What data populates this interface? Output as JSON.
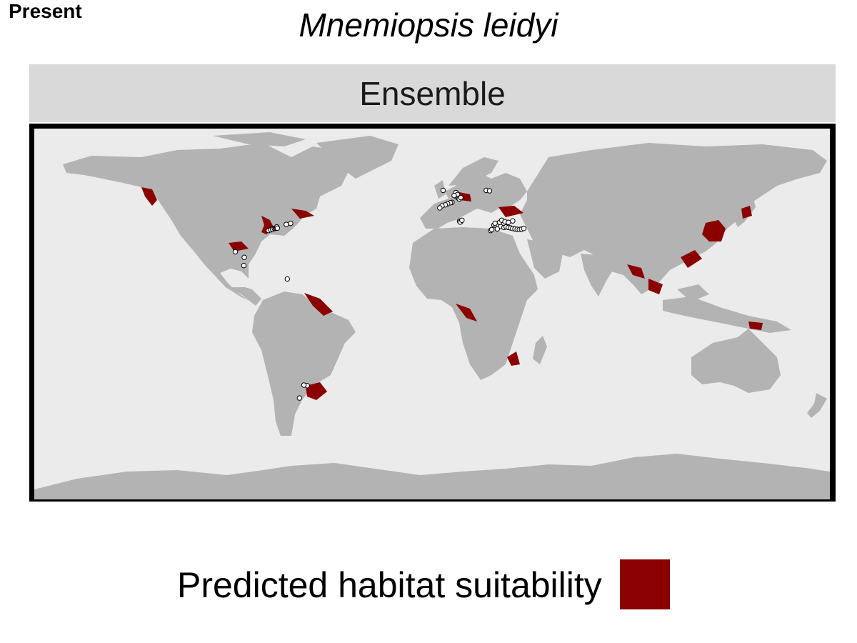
{
  "period_label": "Present",
  "species_title": "Mnemiopsis leidyi",
  "panel": {
    "strip_label": "Ensemble"
  },
  "colors": {
    "ocean": "#ebebeb",
    "land": "#b3b3b3",
    "suitable": "#8b0000",
    "occurrence_fill": "#ffffff",
    "occurrence_stroke": "#000000",
    "frame": "#000000"
  },
  "map_extent": {
    "lon": [
      -180,
      180
    ],
    "lat": [
      -90,
      90
    ]
  },
  "occurrences": [
    [
      -74.0,
      40.5
    ],
    [
      -73.0,
      40.9
    ],
    [
      -72.2,
      41.2
    ],
    [
      -71.4,
      41.5
    ],
    [
      -70.9,
      41.6
    ],
    [
      -70.5,
      41.8
    ],
    [
      -70.3,
      42.3
    ],
    [
      -70.0,
      41.7
    ],
    [
      -66.0,
      43.5
    ],
    [
      -64.0,
      44.0
    ],
    [
      -89.0,
      30.2
    ],
    [
      -85.0,
      27.5
    ],
    [
      -85.2,
      23.5
    ],
    [
      -65.5,
      17.0
    ],
    [
      -56.5,
      -34.8
    ],
    [
      -58.0,
      -34.5
    ],
    [
      -60.0,
      -40.8
    ],
    [
      10.8,
      59.0
    ],
    [
      5.0,
      60.0
    ],
    [
      11.0,
      57.0
    ],
    [
      11.5,
      58.0
    ],
    [
      12.0,
      56.2
    ],
    [
      10.0,
      57.5
    ],
    [
      12.3,
      55.8
    ],
    [
      13.0,
      56.5
    ],
    [
      24.5,
      60.0
    ],
    [
      26.0,
      59.8
    ],
    [
      9.0,
      54.2
    ],
    [
      8.3,
      54.0
    ],
    [
      7.0,
      53.5
    ],
    [
      6.0,
      53.0
    ],
    [
      4.5,
      52.5
    ],
    [
      3.5,
      51.5
    ],
    [
      12.4,
      45.1
    ],
    [
      13.2,
      45.2
    ],
    [
      13.0,
      44.8
    ],
    [
      12.7,
      44.6
    ],
    [
      13.5,
      45.5
    ],
    [
      28.0,
      43.2
    ],
    [
      29.0,
      42.9
    ],
    [
      30.0,
      43.0
    ],
    [
      31.0,
      42.5
    ],
    [
      32.5,
      42.0
    ],
    [
      33.5,
      42.3
    ],
    [
      34.5,
      42.0
    ],
    [
      35.5,
      41.8
    ],
    [
      36.5,
      41.5
    ],
    [
      37.5,
      41.3
    ],
    [
      38.5,
      41.1
    ],
    [
      39.5,
      41.0
    ],
    [
      40.5,
      41.2
    ],
    [
      41.5,
      41.5
    ],
    [
      30.5,
      44.5
    ],
    [
      31.5,
      45.5
    ],
    [
      33.0,
      44.8
    ],
    [
      34.5,
      44.5
    ],
    [
      36.5,
      45.2
    ],
    [
      28.5,
      44.0
    ],
    [
      29.5,
      41.3
    ],
    [
      26.5,
      40.5
    ],
    [
      27.0,
      41.0
    ]
  ],
  "legend": {
    "label": "Predicted habitat suitability",
    "swatch_color": "#8b0000"
  }
}
